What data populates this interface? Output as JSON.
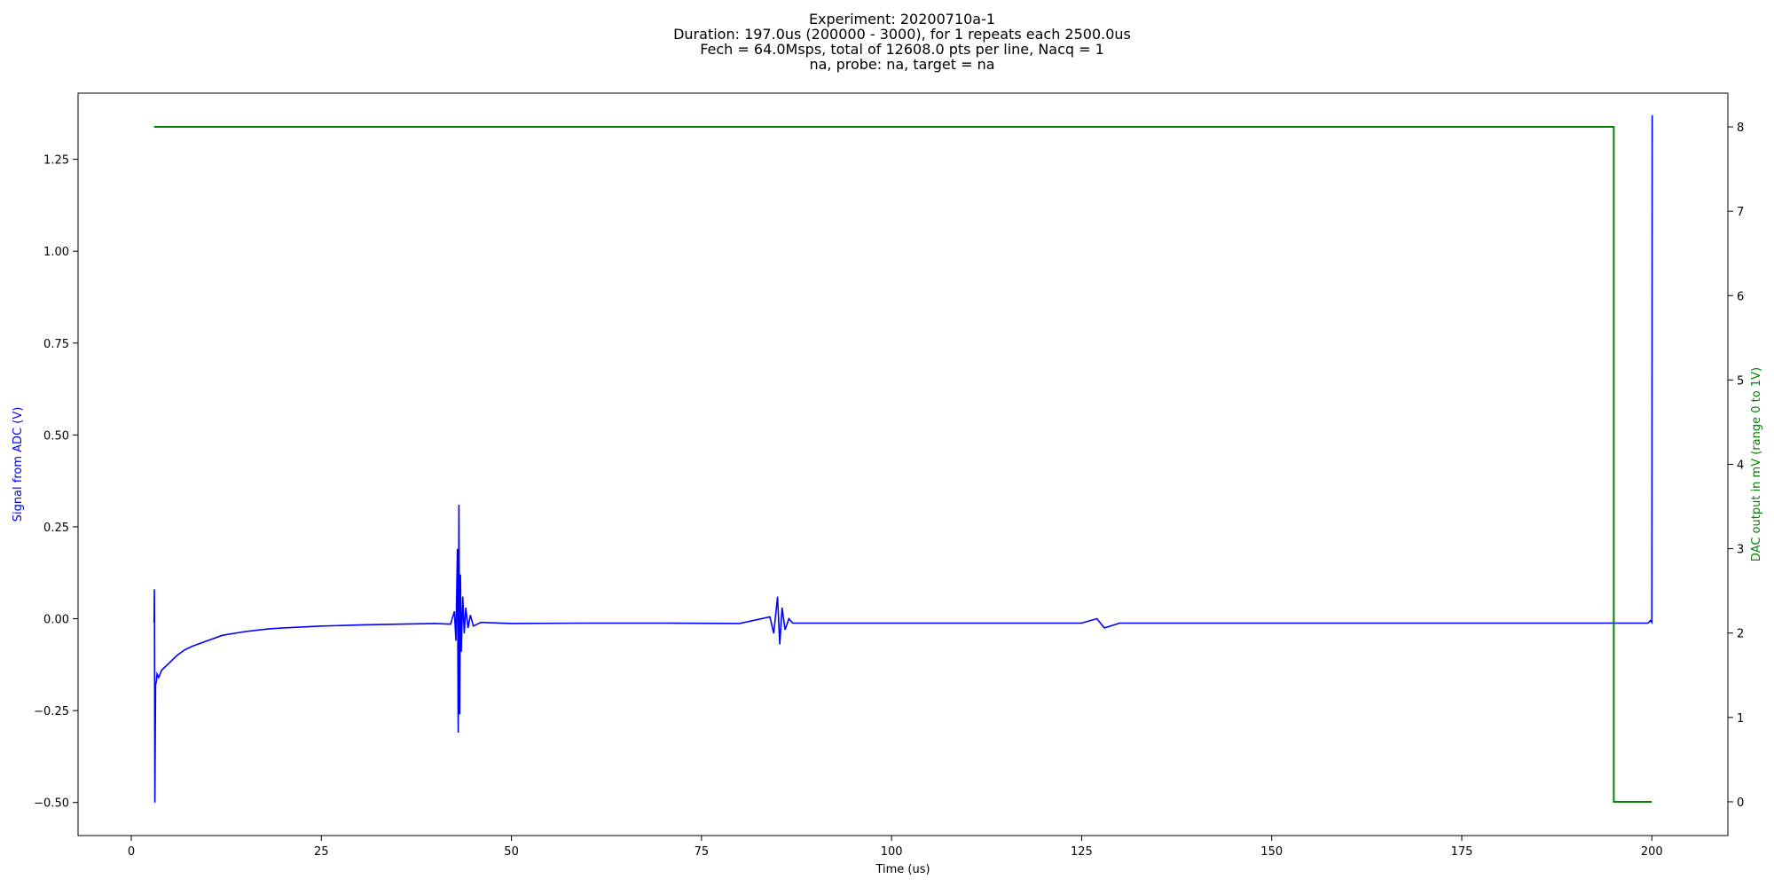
{
  "chart_data": {
    "type": "line",
    "title_lines": [
      "Experiment: 20200710a-1",
      "Duration: 197.0us (200000 - 3000), for 1 repeats each 2500.0us",
      "Fech = 64.0Msps, total of 12608.0 pts per line, Nacq = 1",
      "na, probe: na, target = na"
    ],
    "xlabel": "Time (us)",
    "ylabel_left": "Signal from ADC (V)",
    "ylabel_right": "DAC output in mV (range 0 to 1V)",
    "xlim": [
      -7,
      210
    ],
    "ylim_left": [
      -0.59,
      1.43
    ],
    "ylim_right": [
      -0.4,
      8.4
    ],
    "xticks": [
      0,
      25,
      50,
      75,
      100,
      125,
      150,
      175,
      200
    ],
    "yticks_left": [
      -0.5,
      -0.25,
      0.0,
      0.25,
      0.5,
      0.75,
      1.0,
      1.25
    ],
    "yticks_right": [
      0,
      1,
      2,
      3,
      4,
      5,
      6,
      7,
      8
    ],
    "ytick_labels_left": [
      "−0.50",
      "−0.25",
      "0.00",
      "0.25",
      "0.50",
      "0.75",
      "1.00",
      "1.25"
    ],
    "colors": {
      "signal": "#0000ff",
      "dac": "#008000",
      "left_axis_label": "#0000ff",
      "right_axis_label": "#008000"
    },
    "series": [
      {
        "axis": "left",
        "color": "#0000ff",
        "x": [
          3.0,
          3.05,
          3.1,
          3.2,
          3.3,
          3.4,
          3.6,
          4,
          5,
          6,
          7,
          8,
          10,
          12,
          15,
          18,
          20,
          25,
          30,
          35,
          40,
          42,
          42.5,
          42.7,
          42.9,
          43.0,
          43.1,
          43.2,
          43.3,
          43.4,
          43.6,
          43.8,
          44.0,
          44.3,
          44.6,
          45,
          46,
          50,
          60,
          70,
          80,
          84,
          84.5,
          85,
          85.3,
          85.6,
          86,
          86.5,
          87,
          90,
          100,
          110,
          120,
          125,
          127,
          128,
          130,
          140,
          150,
          160,
          170,
          180,
          190,
          195,
          199.5,
          199.8,
          200.0,
          200.05
        ],
        "y": [
          -0.01,
          0.08,
          -0.5,
          -0.18,
          -0.17,
          -0.15,
          -0.16,
          -0.14,
          -0.12,
          -0.1,
          -0.085,
          -0.075,
          -0.06,
          -0.045,
          -0.035,
          -0.028,
          -0.025,
          -0.02,
          -0.017,
          -0.015,
          -0.013,
          -0.015,
          0.02,
          -0.06,
          0.19,
          -0.31,
          0.31,
          -0.26,
          0.12,
          -0.09,
          0.06,
          -0.04,
          0.03,
          -0.025,
          0.01,
          -0.02,
          -0.01,
          -0.013,
          -0.012,
          -0.012,
          -0.013,
          0.005,
          -0.04,
          0.06,
          -0.07,
          0.03,
          -0.03,
          0.0,
          -0.012,
          -0.012,
          -0.012,
          -0.012,
          -0.012,
          -0.012,
          0.0,
          -0.025,
          -0.012,
          -0.012,
          -0.012,
          -0.012,
          -0.012,
          -0.012,
          -0.012,
          -0.012,
          -0.012,
          -0.005,
          -0.01,
          1.37
        ]
      },
      {
        "axis": "right",
        "color": "#008000",
        "x": [
          3.0,
          195.0,
          195.0,
          200.0
        ],
        "y": [
          8,
          8,
          0,
          0
        ]
      }
    ]
  }
}
